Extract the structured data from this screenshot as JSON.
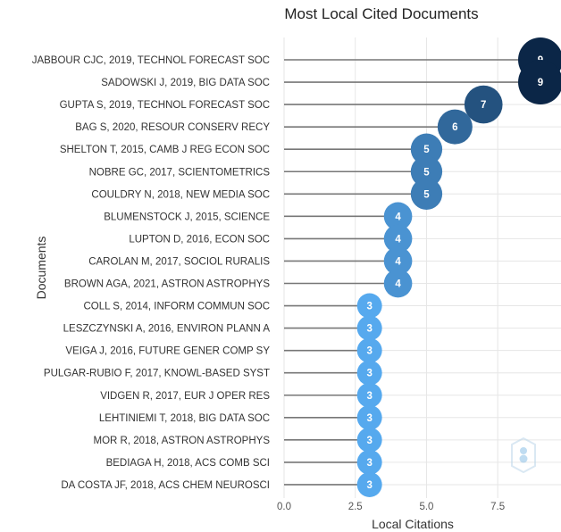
{
  "chart_data": {
    "type": "scatter",
    "title": "Most Local Cited Documents",
    "xlabel": "Local Citations",
    "ylabel": "Documents",
    "xlim": [
      0,
      9
    ],
    "xticks": [
      {
        "value": 0,
        "label": "0.0"
      },
      {
        "value": 2.5,
        "label": "2.5"
      },
      {
        "value": 5,
        "label": "5.0"
      },
      {
        "value": 7.5,
        "label": "7.5"
      }
    ],
    "grid": true,
    "legend": "none",
    "color_scale": [
      "#56a9ee",
      "#0b2647"
    ],
    "documents": [
      {
        "label": "JABBOUR CJC, 2019, TECHNOL FORECAST SOC",
        "value": 9
      },
      {
        "label": "SADOWSKI J, 2019, BIG DATA SOC",
        "value": 9
      },
      {
        "label": "GUPTA S, 2019, TECHNOL FORECAST SOC",
        "value": 7
      },
      {
        "label": "BAG S, 2020, RESOUR CONSERV RECY",
        "value": 6
      },
      {
        "label": "SHELTON T, 2015, CAMB J REG ECON SOC",
        "value": 5
      },
      {
        "label": "NOBRE GC, 2017, SCIENTOMETRICS",
        "value": 5
      },
      {
        "label": "COULDRY N, 2018, NEW MEDIA SOC",
        "value": 5
      },
      {
        "label": "BLUMENSTOCK J, 2015, SCIENCE",
        "value": 4
      },
      {
        "label": "LUPTON D, 2016, ECON SOC",
        "value": 4
      },
      {
        "label": "CAROLAN M, 2017, SOCIOL RURALIS",
        "value": 4
      },
      {
        "label": "BROWN AGA, 2021, ASTRON ASTROPHYS",
        "value": 4
      },
      {
        "label": "COLL S, 2014, INFORM COMMUN SOC",
        "value": 3
      },
      {
        "label": "LESZCZYNSKI A, 2016, ENVIRON PLANN A",
        "value": 3
      },
      {
        "label": "VEIGA J, 2016, FUTURE GENER COMP SY",
        "value": 3
      },
      {
        "label": "PULGAR-RUBIO F, 2017, KNOWL-BASED SYST",
        "value": 3
      },
      {
        "label": "VIDGEN R, 2017, EUR J OPER RES",
        "value": 3
      },
      {
        "label": "LEHTINIEMI T, 2018, BIG DATA SOC",
        "value": 3
      },
      {
        "label": "MOR R, 2018, ASTRON ASTROPHYS",
        "value": 3
      },
      {
        "label": "BEDIAGA H, 2018, ACS COMB SCI",
        "value": 3
      },
      {
        "label": "DA COSTA JF, 2018, ACS CHEM NEUROSCI",
        "value": 3
      }
    ]
  }
}
